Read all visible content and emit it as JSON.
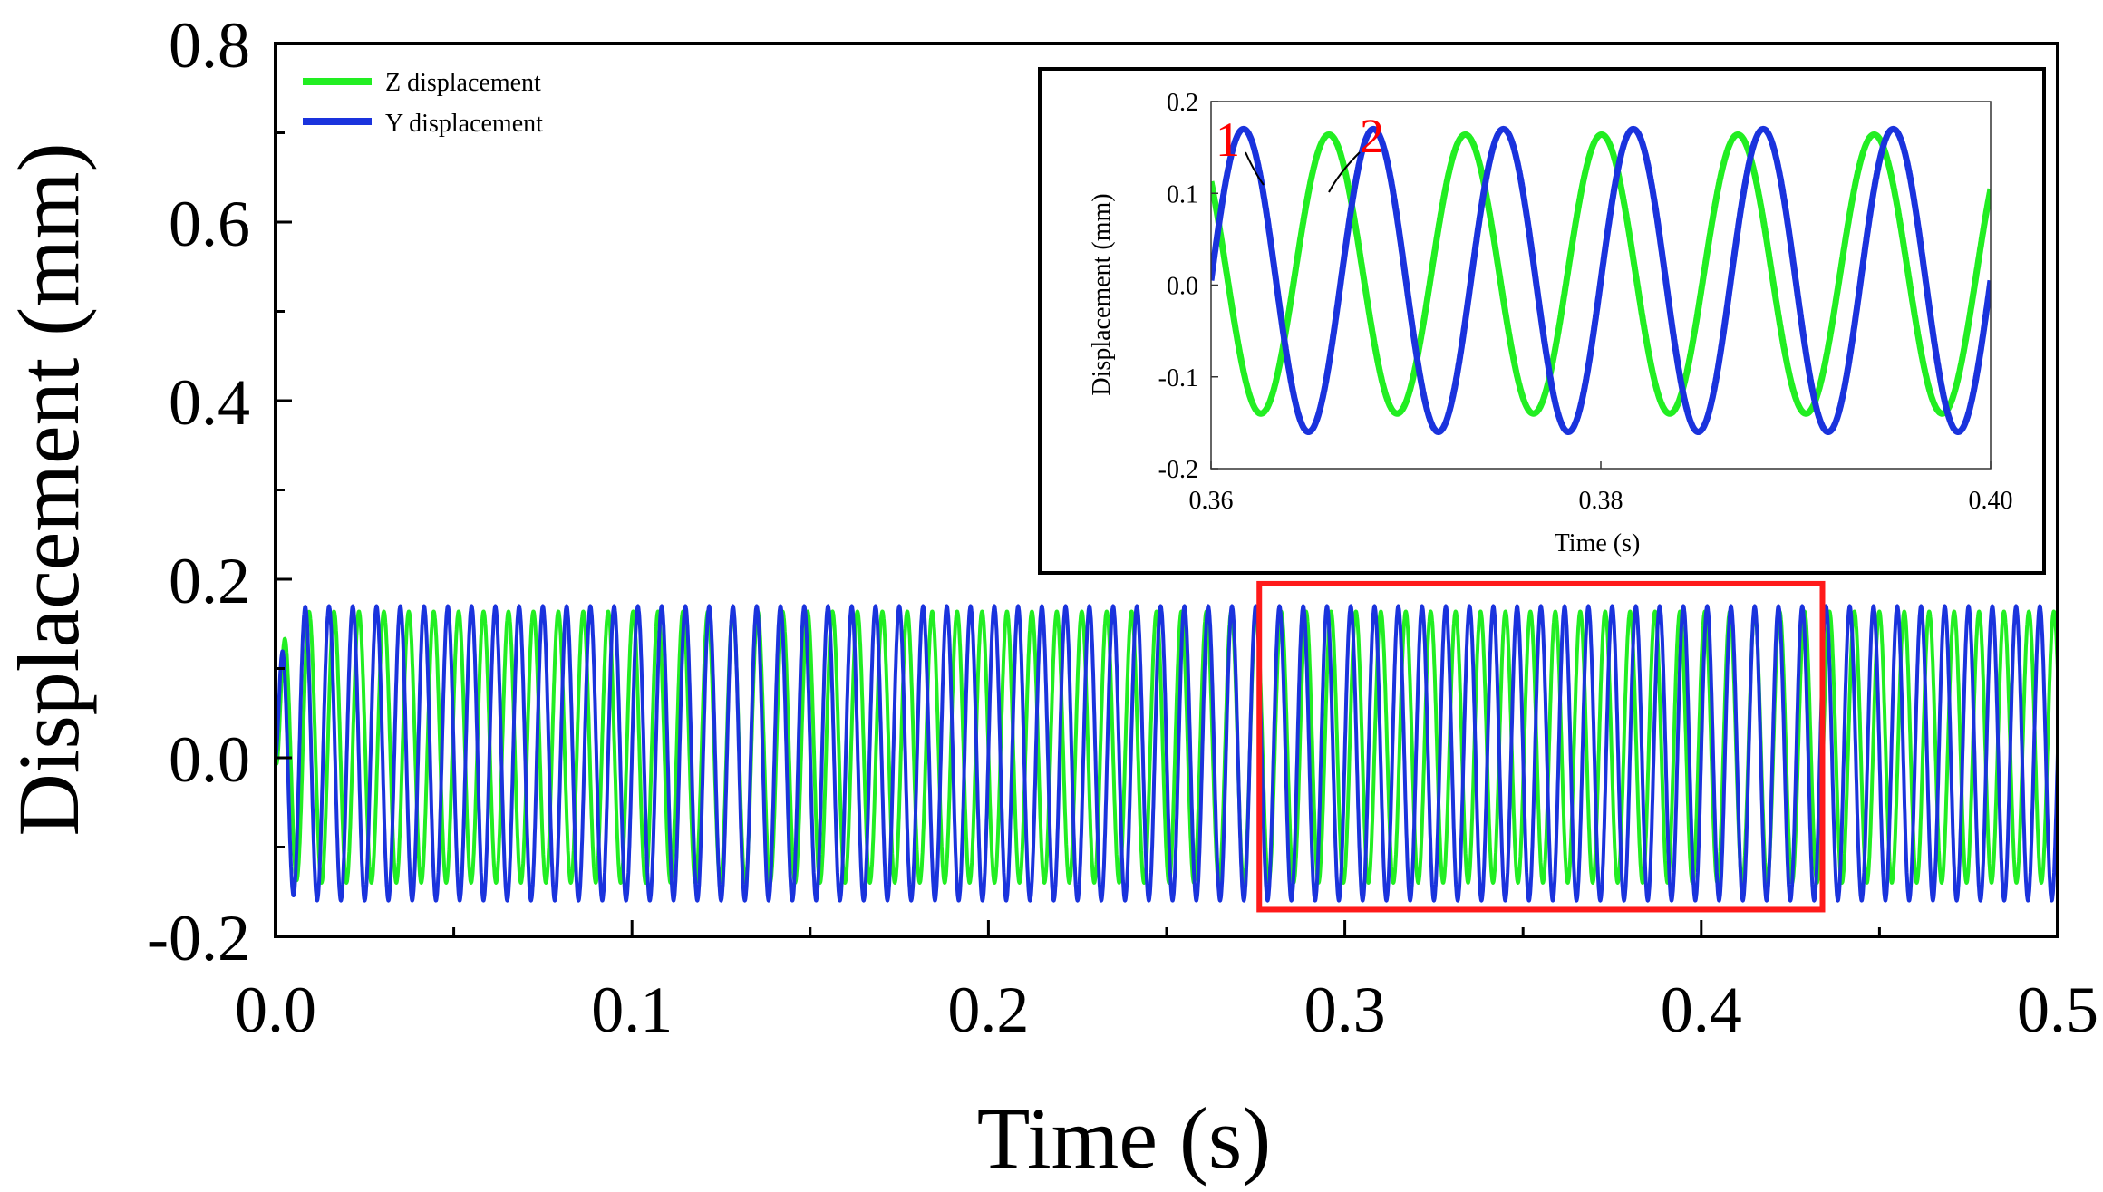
{
  "colors": {
    "z_series": "#22ee22",
    "y_series": "#1a33dd",
    "highlight_box": "#ff1a1a",
    "callout_text": "#ff0000",
    "axes": "#000000"
  },
  "chart_data": [
    {
      "type": "line",
      "xlabel": "Time (s)",
      "ylabel": "Displacement (mm)",
      "xlim": [
        0.0,
        0.5
      ],
      "ylim": [
        -0.2,
        0.8
      ],
      "xticks": [
        "0.0",
        "0.1",
        "0.2",
        "0.3",
        "0.4",
        "0.5"
      ],
      "yticks": [
        "-0.2",
        "0.0",
        "0.2",
        "0.4",
        "0.6",
        "0.8"
      ],
      "grid": false,
      "legend_position": "top-left",
      "highlight_region": {
        "x": [
          0.276,
          0.434
        ],
        "y": [
          -0.17,
          0.195
        ]
      },
      "series": [
        {
          "name": "Z displacement",
          "color": "#22ee22",
          "frequency_hz": 143,
          "amplitude": 0.152,
          "offset": 0.012,
          "min": -0.14,
          "max": 0.165
        },
        {
          "name": "Y displacement",
          "color": "#1a33dd",
          "frequency_hz": 150,
          "amplitude": 0.165,
          "offset": 0.005,
          "min": -0.16,
          "max": 0.17
        }
      ]
    },
    {
      "type": "line",
      "xlabel": "Time (s)",
      "ylabel": "Displacement (mm)",
      "xlim": [
        0.36,
        0.4
      ],
      "ylim": [
        -0.2,
        0.2
      ],
      "xticks": [
        "0.36",
        "0.38",
        "0.40"
      ],
      "yticks": [
        "-0.2",
        "-0.1",
        "0.0",
        "0.1",
        "0.2"
      ],
      "grid": false,
      "annotations": [
        "1",
        "2"
      ],
      "series": [
        {
          "name": "Z displacement",
          "color": "#22ee22"
        },
        {
          "name": "Y displacement",
          "color": "#1a33dd"
        }
      ]
    }
  ]
}
